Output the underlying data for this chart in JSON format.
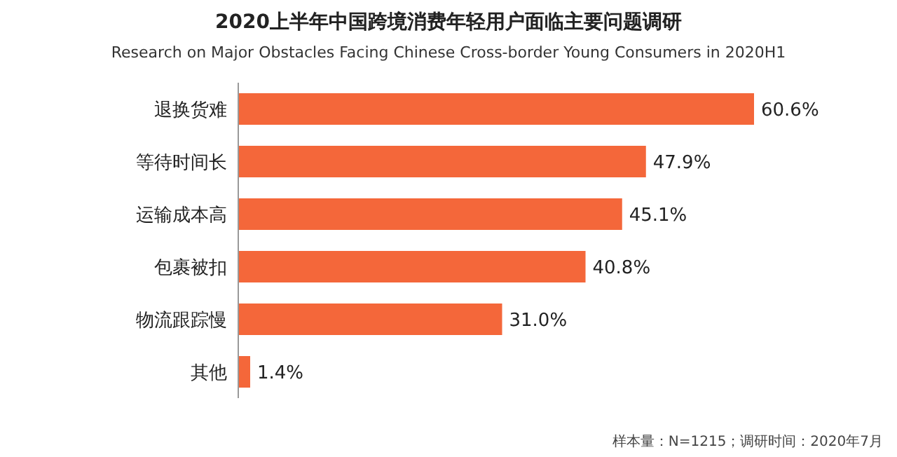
{
  "chart_data": {
    "type": "bar",
    "orientation": "horizontal",
    "title": "2020上半年中国跨境消费年轻用户面临主要问题调研",
    "subtitle": "Research on Major Obstacles Facing Chinese Cross-border Young Consumers in 2020H1",
    "categories": [
      "退换货难",
      "等待时间长",
      "运输成本高",
      "包裹被扣",
      "物流跟踪慢",
      "其他"
    ],
    "values": [
      60.6,
      47.9,
      45.1,
      40.8,
      31.0,
      1.4
    ],
    "value_labels": [
      "60.6%",
      "47.9%",
      "45.1%",
      "40.8%",
      "31.0%",
      "1.4%"
    ],
    "color": "#f4673a",
    "annotations": [
      "样本量：N=1215；调研时间：2020年7月"
    ]
  }
}
